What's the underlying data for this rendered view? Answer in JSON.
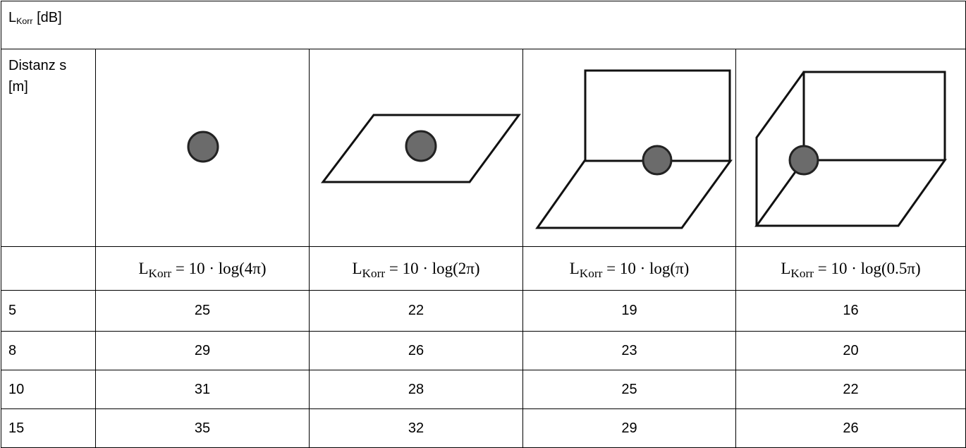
{
  "header": {
    "symbol": "L",
    "subscript": "Korr",
    "unit": "[dB]"
  },
  "table": {
    "distance_label": "Distanz s [m]",
    "formulas": [
      {
        "symbol": "L",
        "subscript": "Korr",
        "expression": "= 10 · log(4π)"
      },
      {
        "symbol": "L",
        "subscript": "Korr",
        "expression": "= 10 · log(2π)"
      },
      {
        "symbol": "L",
        "subscript": "Korr",
        "expression": "= 10 · log(π)"
      },
      {
        "symbol": "L",
        "subscript": "Korr",
        "expression": "= 10 · log(0.5π)"
      }
    ],
    "rows": [
      [
        5,
        25,
        22,
        19,
        16
      ],
      [
        8,
        29,
        26,
        23,
        20
      ],
      [
        10,
        31,
        28,
        25,
        22
      ],
      [
        15,
        35,
        32,
        29,
        26
      ]
    ]
  }
}
